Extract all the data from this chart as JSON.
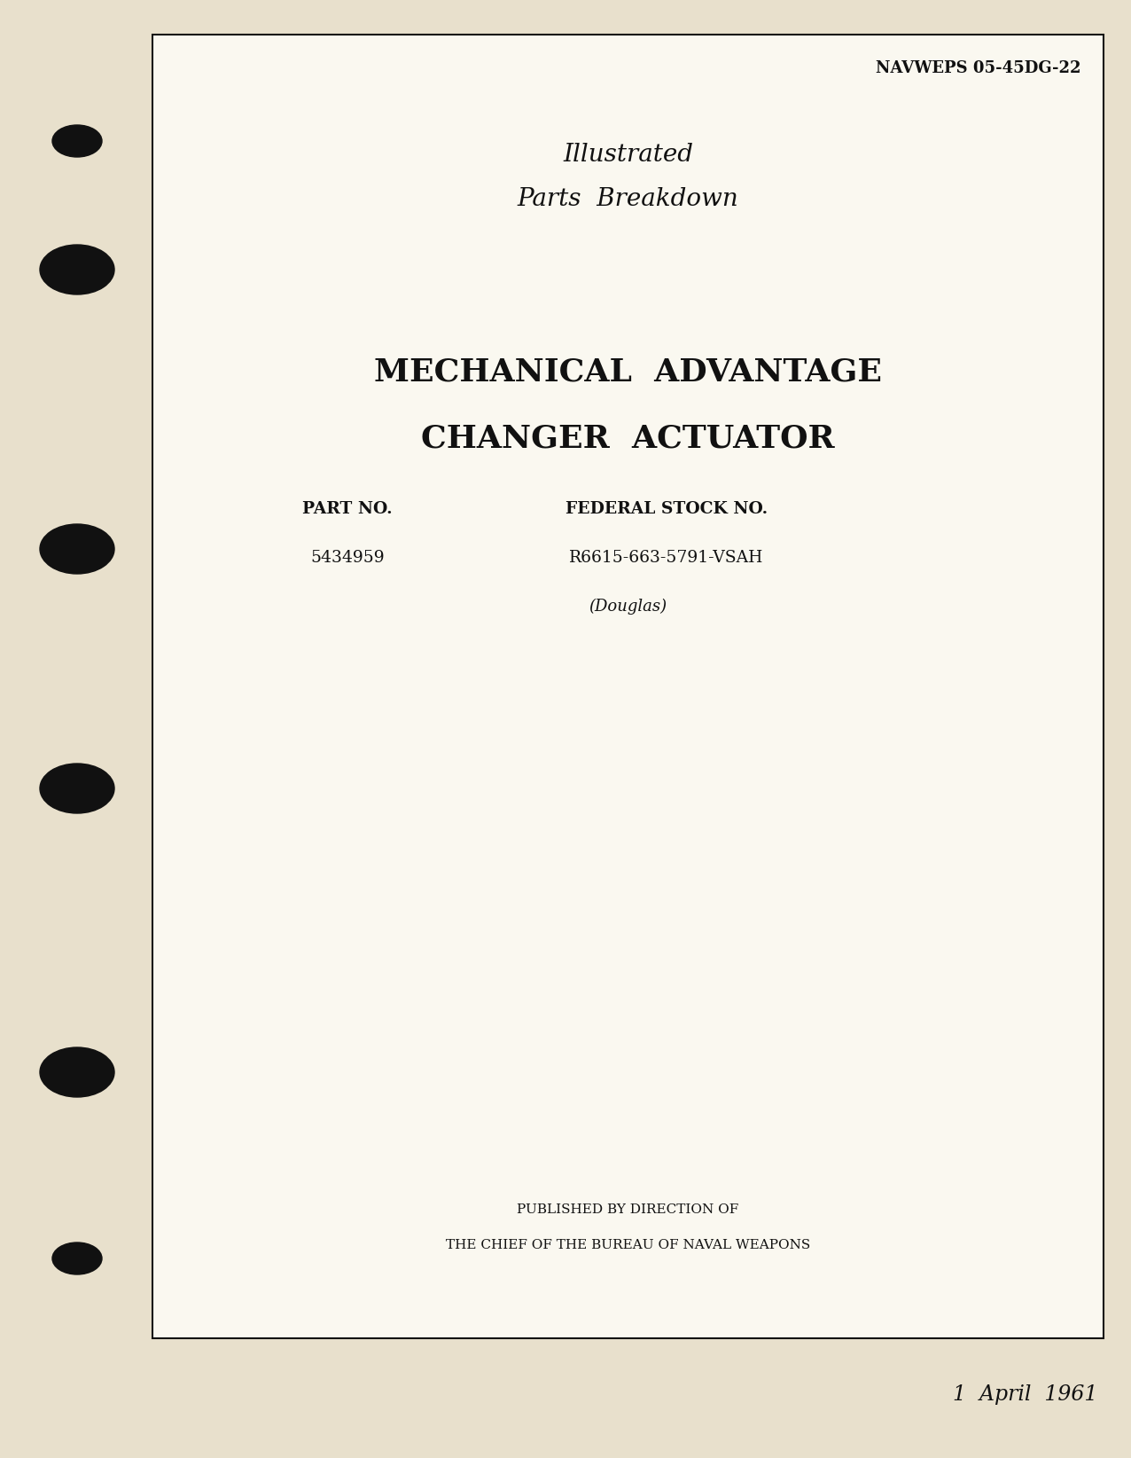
{
  "background_color": "#e8e0cc",
  "page_background": "#faf8f0",
  "border_color": "#111111",
  "text_color": "#111111",
  "navweps": "NAVWEPS 05-45DG-22",
  "title_line1": "Illustrated",
  "title_line2": "Parts  Breakdown",
  "main_title_line1": "MECHANICAL  ADVANTAGE",
  "main_title_line2": "CHANGER  ACTUATOR",
  "part_no_label": "PART NO.",
  "part_no_value": "5434959",
  "stock_no_label": "FEDERAL STOCK NO.",
  "stock_no_value": "R6615-663-5791-VSAH",
  "douglas": "(Douglas)",
  "published_line1": "PUBLISHED BY DIRECTION OF",
  "published_line2": "THE CHIEF OF THE BUREAU OF NAVAL WEAPONS",
  "date": "1  April  1961",
  "hole_color": "#111111",
  "fig_width": 12.76,
  "fig_height": 16.44,
  "dpi": 100
}
